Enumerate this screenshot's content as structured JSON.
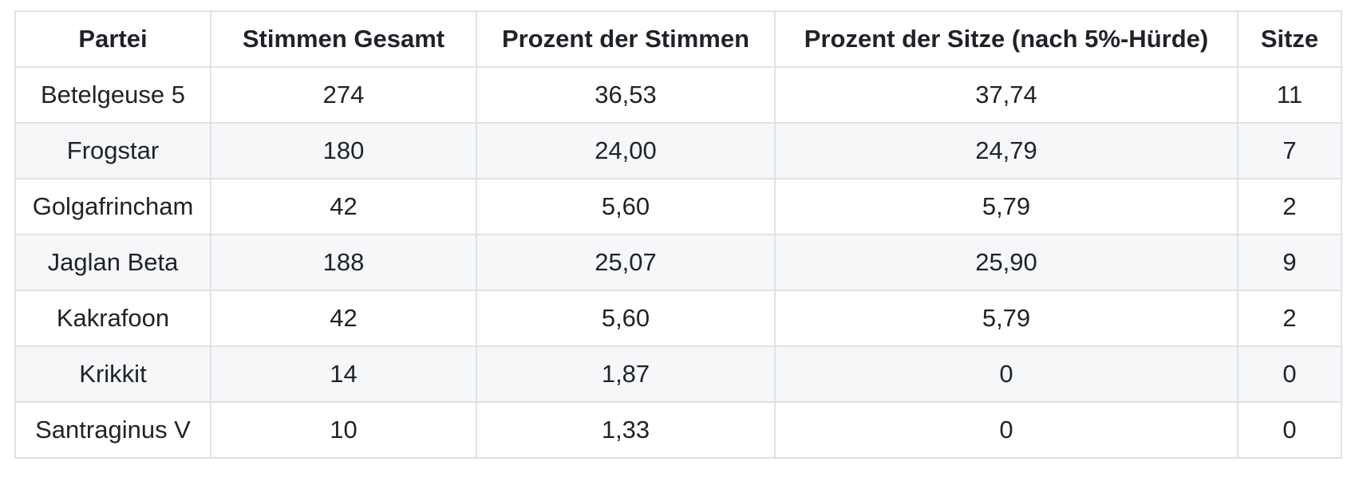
{
  "colors": {
    "text": "#1f2328",
    "border": "#dee2e6",
    "stripe_row_background": "#f6f7f9",
    "background": "#ffffff"
  },
  "table": {
    "columns": [
      {
        "key": "partei",
        "label": "Partei"
      },
      {
        "key": "stimmen-gesamt",
        "label": "Stimmen Gesamt"
      },
      {
        "key": "prozent-der-stimmen",
        "label": "Prozent der Stimmen"
      },
      {
        "key": "prozent-der-sitze",
        "label": "Prozent der Sitze (nach 5%-Hürde)"
      },
      {
        "key": "sitze",
        "label": "Sitze"
      }
    ],
    "rows": [
      [
        "Betelgeuse 5",
        "274",
        "36,53",
        "37,74",
        "11"
      ],
      [
        "Frogstar",
        "180",
        "24,00",
        "24,79",
        "7"
      ],
      [
        "Golgafrincham",
        "42",
        "5,60",
        "5,79",
        "2"
      ],
      [
        "Jaglan Beta",
        "188",
        "25,07",
        "25,90",
        "9"
      ],
      [
        "Kakrafoon",
        "42",
        "5,60",
        "5,79",
        "2"
      ],
      [
        "Krikkit",
        "14",
        "1,87",
        "0",
        "0"
      ],
      [
        "Santraginus V",
        "10",
        "1,33",
        "0",
        "0"
      ]
    ]
  },
  "chart_data": {
    "type": "table",
    "columns": [
      "Partei",
      "Stimmen Gesamt",
      "Prozent der Stimmen",
      "Prozent der Sitze (nach 5%-Hürde)",
      "Sitze"
    ],
    "rows": [
      [
        "Betelgeuse 5",
        274,
        36.53,
        37.74,
        11
      ],
      [
        "Frogstar",
        180,
        24.0,
        24.79,
        7
      ],
      [
        "Golgafrincham",
        42,
        5.6,
        5.79,
        2
      ],
      [
        "Jaglan Beta",
        188,
        25.07,
        25.9,
        9
      ],
      [
        "Kakrafoon",
        42,
        5.6,
        5.79,
        2
      ],
      [
        "Krikkit",
        14,
        1.87,
        0,
        0
      ],
      [
        "Santraginus V",
        10,
        1.33,
        0,
        0
      ]
    ],
    "decimal_separator": ","
  }
}
